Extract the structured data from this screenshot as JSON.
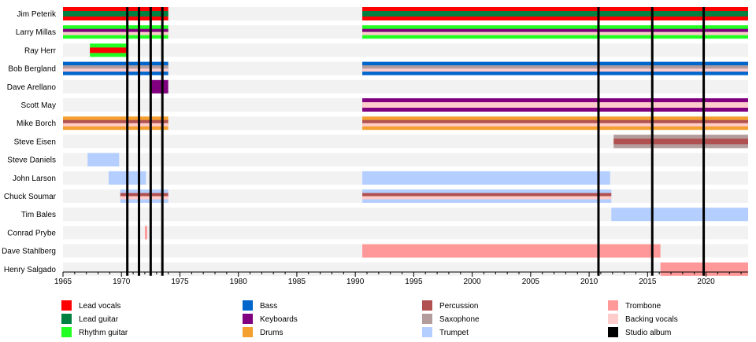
{
  "chart_data": {
    "type": "timeline",
    "title": "",
    "xlabel": "",
    "ylabel": "",
    "xlim": [
      1965,
      2023.6
    ],
    "xticks": [
      1965,
      1970,
      1975,
      1980,
      1985,
      1990,
      1995,
      2000,
      2005,
      2010,
      2015,
      2020
    ],
    "roles": [
      {
        "key": "lead_vocals",
        "label": "Lead vocals",
        "color": "#ff0000"
      },
      {
        "key": "lead_guitar",
        "label": "Lead guitar",
        "color": "#008040"
      },
      {
        "key": "rhythm_guitar",
        "label": "Rhythm guitar",
        "color": "#22ff22"
      },
      {
        "key": "bass",
        "label": "Bass",
        "color": "#0066cc"
      },
      {
        "key": "keyboards",
        "label": "Keyboards",
        "color": "#800080"
      },
      {
        "key": "drums",
        "label": "Drums",
        "color": "#f4a030"
      },
      {
        "key": "percussion",
        "label": "Percussion",
        "color": "#b05050"
      },
      {
        "key": "saxophone",
        "label": "Saxophone",
        "color": "#b39c9c"
      },
      {
        "key": "trumpet",
        "label": "Trumpet",
        "color": "#b4cfff"
      },
      {
        "key": "trombone",
        "label": "Trombone",
        "color": "#ff9999"
      },
      {
        "key": "backing_vocals",
        "label": "Backing vocals",
        "color": "#ffcccc"
      },
      {
        "key": "studio_album",
        "label": "Studio album",
        "color": "#000000"
      }
    ],
    "studio_albums": [
      1970.5,
      1971.5,
      1972.5,
      1973.5,
      2010.8,
      2015.4,
      2019.8
    ],
    "members": [
      {
        "name": "Jim Peterik",
        "bars": [
          {
            "start": 1965,
            "end": 1974,
            "roles": [
              "lead_vocals",
              "lead_guitar"
            ]
          },
          {
            "start": 1990.6,
            "end": 2023.6,
            "roles": [
              "lead_vocals",
              "lead_guitar"
            ]
          }
        ]
      },
      {
        "name": "Larry Millas",
        "bars": [
          {
            "start": 1965,
            "end": 1974,
            "roles": [
              "rhythm_guitar",
              "keyboards",
              "backing_vocals"
            ]
          },
          {
            "start": 1990.6,
            "end": 2023.6,
            "roles": [
              "rhythm_guitar",
              "keyboards",
              "backing_vocals"
            ]
          }
        ]
      },
      {
        "name": "Ray Herr",
        "bars": [
          {
            "start": 1967.3,
            "end": 1970.5,
            "roles": [
              "rhythm_guitar",
              "lead_vocals"
            ]
          }
        ]
      },
      {
        "name": "Bob Bergland",
        "bars": [
          {
            "start": 1965,
            "end": 1974,
            "roles": [
              "bass",
              "saxophone",
              "backing_vocals"
            ]
          },
          {
            "start": 1990.6,
            "end": 2023.6,
            "roles": [
              "bass",
              "saxophone",
              "backing_vocals"
            ]
          }
        ]
      },
      {
        "name": "Dave Arellano",
        "bars": [
          {
            "start": 1972.4,
            "end": 1974,
            "roles": [
              "keyboards"
            ]
          }
        ]
      },
      {
        "name": "Scott May",
        "bars": [
          {
            "start": 1990.6,
            "end": 2023.6,
            "roles": [
              "keyboards",
              "backing_vocals"
            ]
          }
        ]
      },
      {
        "name": "Mike Borch",
        "bars": [
          {
            "start": 1965,
            "end": 1974,
            "roles": [
              "drums",
              "percussion",
              "backing_vocals"
            ]
          },
          {
            "start": 1990.6,
            "end": 2023.6,
            "roles": [
              "drums",
              "percussion",
              "backing_vocals"
            ]
          }
        ]
      },
      {
        "name": "Steve Eisen",
        "bars": [
          {
            "start": 2012.1,
            "end": 2023.6,
            "roles": [
              "saxophone",
              "percussion"
            ]
          }
        ]
      },
      {
        "name": "Steve Daniels",
        "bars": [
          {
            "start": 1967.1,
            "end": 1969.8,
            "roles": [
              "trumpet"
            ]
          }
        ]
      },
      {
        "name": "John Larson",
        "bars": [
          {
            "start": 1968.9,
            "end": 1972.1,
            "roles": [
              "trumpet"
            ]
          },
          {
            "start": 1990.6,
            "end": 2011.8,
            "roles": [
              "trumpet"
            ]
          }
        ]
      },
      {
        "name": "Chuck Soumar",
        "bars": [
          {
            "start": 1969.9,
            "end": 1974,
            "roles": [
              "trumpet",
              "percussion",
              "backing_vocals"
            ]
          },
          {
            "start": 1990.6,
            "end": 2011.9,
            "roles": [
              "trumpet",
              "percussion",
              "backing_vocals"
            ]
          }
        ]
      },
      {
        "name": "Tim Bales",
        "bars": [
          {
            "start": 2011.9,
            "end": 2023.6,
            "roles": [
              "trumpet"
            ]
          }
        ]
      },
      {
        "name": "Conrad Prybe",
        "bars": [
          {
            "start": 1972.0,
            "end": 1972.2,
            "roles": [
              "trombone"
            ]
          }
        ]
      },
      {
        "name": "Dave Stahlberg",
        "bars": [
          {
            "start": 1990.6,
            "end": 2016.1,
            "roles": [
              "trombone"
            ]
          }
        ]
      },
      {
        "name": "Henry Salgado",
        "bars": [
          {
            "start": 2016.1,
            "end": 2023.6,
            "roles": [
              "trombone"
            ]
          }
        ]
      }
    ]
  }
}
